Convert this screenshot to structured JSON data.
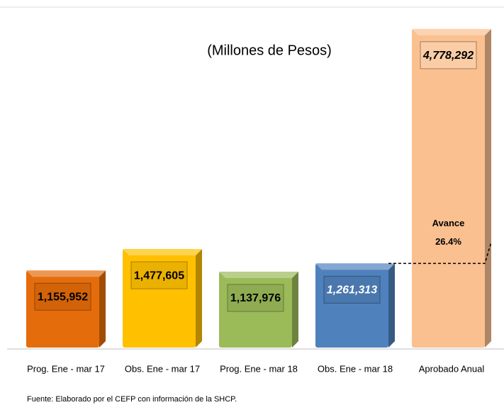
{
  "chart_data": {
    "type": "bar3d",
    "title": "(Millones de Pesos)",
    "categories": [
      "Prog. Ene - mar 17",
      "Obs. Ene - mar 17",
      "Prog. Ene - mar 18",
      "Obs. Ene - mar 18",
      "Aprobado Anual"
    ],
    "values": [
      1155952,
      1477605,
      1137976,
      1261313,
      4778292
    ],
    "value_labels": [
      "1,155,952",
      "1,477,605",
      "1,137,976",
      "1,261,313",
      "4,778,292"
    ],
    "colors": [
      "#e46c0a",
      "#ffc000",
      "#9bbb59",
      "#4f81bd",
      "#fac090"
    ],
    "ylim": [
      0,
      5000000
    ],
    "annotation": {
      "text": "Avance",
      "value": 26.4,
      "value_label": "26.4%"
    },
    "source": "Fuente: Elaborado por el CEFP con información de la SHCP."
  }
}
